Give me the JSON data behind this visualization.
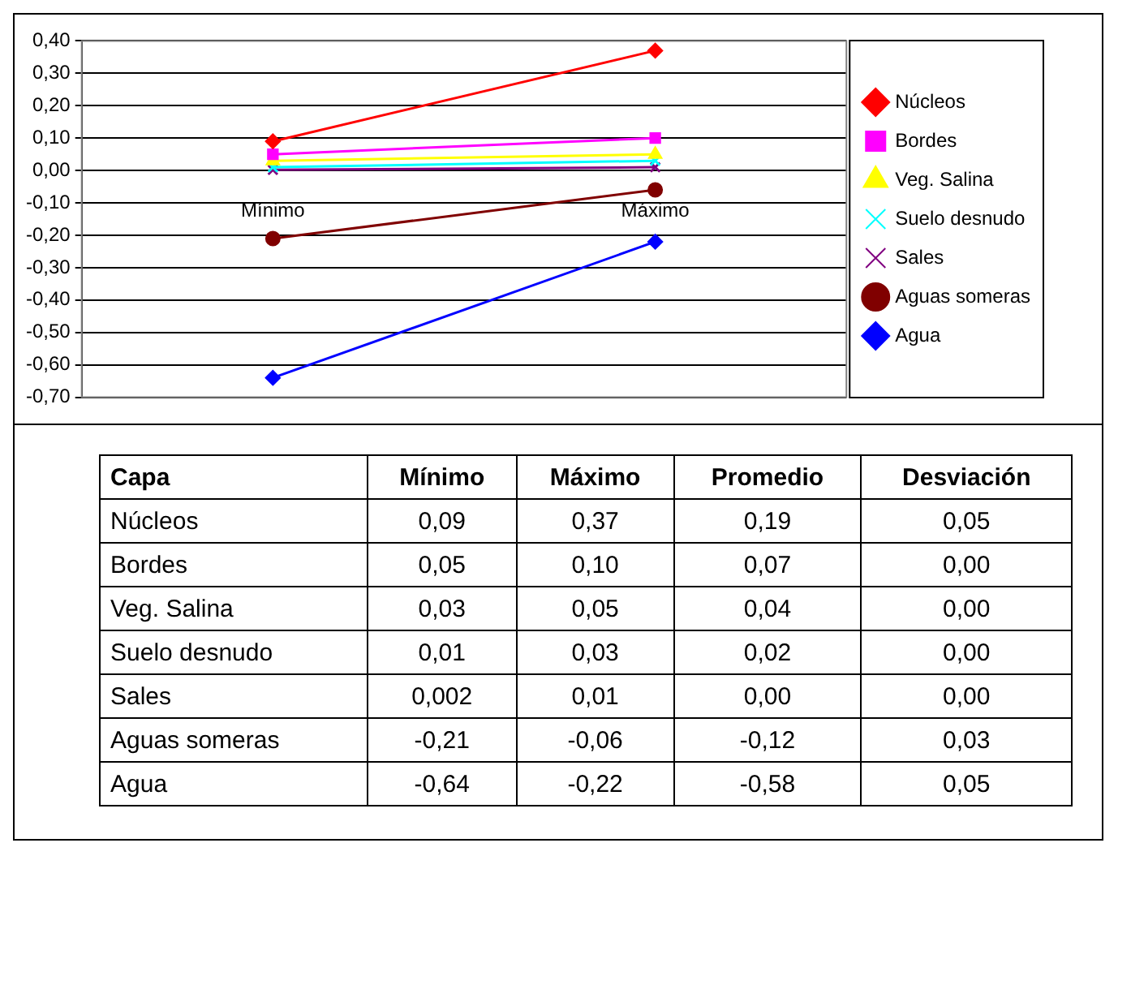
{
  "chart_data": [
    {
      "type": "line",
      "categories": [
        "Mínimo",
        "Máximo"
      ],
      "series": [
        {
          "name": "Núcleos",
          "color": "#ff0000",
          "values": [
            0.09,
            0.37
          ],
          "marker": "diamond"
        },
        {
          "name": "Bordes",
          "color": "#ff00ff",
          "values": [
            0.05,
            0.1
          ],
          "marker": "square"
        },
        {
          "name": "Veg. Salina",
          "color": "#ffff00",
          "values": [
            0.03,
            0.05
          ],
          "marker": "triangle"
        },
        {
          "name": "Suelo desnudo",
          "color": "#00ffff",
          "values": [
            0.01,
            0.03
          ],
          "marker": "cross"
        },
        {
          "name": "Sales",
          "color": "#800080",
          "values": [
            0.002,
            0.01
          ],
          "marker": "cross"
        },
        {
          "name": "Aguas someras",
          "color": "#800000",
          "values": [
            -0.21,
            -0.06
          ],
          "marker": "circle"
        },
        {
          "name": "Agua",
          "color": "#0000ff",
          "values": [
            -0.64,
            -0.22
          ],
          "marker": "diamond"
        }
      ],
      "ylim": [
        -0.7,
        0.4
      ],
      "yticks": [
        {
          "value": 0.4,
          "label": "0,40"
        },
        {
          "value": 0.3,
          "label": "0,30"
        },
        {
          "value": 0.2,
          "label": "0,20"
        },
        {
          "value": 0.1,
          "label": "0,10"
        },
        {
          "value": 0,
          "label": "0,00"
        },
        {
          "value": -0.1,
          "label": "-0,10"
        },
        {
          "value": -0.2,
          "label": "-0,20"
        },
        {
          "value": -0.3,
          "label": "-0,30"
        },
        {
          "value": -0.4,
          "label": "-0,40"
        },
        {
          "value": -0.5,
          "label": "-0,50"
        },
        {
          "value": -0.6,
          "label": "-0,60"
        },
        {
          "value": -0.7,
          "label": "-0,70"
        }
      ],
      "grid": "y",
      "legend": "right"
    },
    {
      "type": "other",
      "ylabel": "Capa",
      "categories": [
        "Mínimo",
        "Máximo",
        "Promedio",
        "Desviación"
      ],
      "y_categories": [
        "Núcleos",
        "Bordes",
        "Veg. Salina",
        "Suelo desnudo",
        "Sales",
        "Aguas someras",
        "Agua"
      ],
      "cell_labels": [
        [
          "0,09",
          "0,37",
          "0,19",
          "0,05"
        ],
        [
          "0,05",
          "0,10",
          "0,07",
          "0,00"
        ],
        [
          "0,03",
          "0,05",
          "0,04",
          "0,00"
        ],
        [
          "0,01",
          "0,03",
          "0,02",
          "0,00"
        ],
        [
          "0,002",
          "0,01",
          "0,00",
          "0,00"
        ],
        [
          "-0,21",
          "-0,06",
          "-0,12",
          "0,03"
        ],
        [
          "-0,64",
          "-0,22",
          "-0,58",
          "0,05"
        ]
      ]
    }
  ]
}
